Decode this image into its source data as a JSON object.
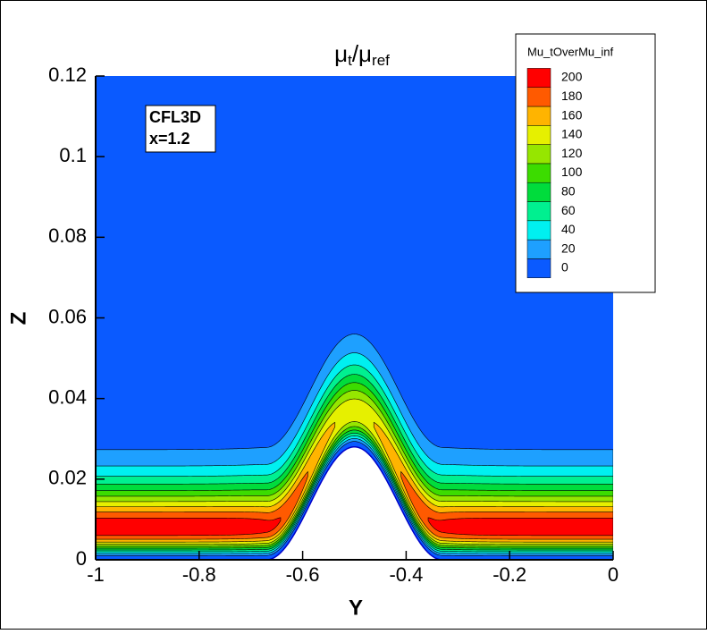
{
  "chart_data": {
    "type": "contour",
    "title": {
      "base1": "μ",
      "sub1": "t",
      "base2": "/μ",
      "sub2": "ref"
    },
    "x_label": "Y",
    "y_label": "Z",
    "annotation": [
      "CFL3D",
      "x=1.2"
    ],
    "legend_title": "Mu_tOverMu_inf",
    "levels": [
      0,
      20,
      40,
      60,
      80,
      100,
      120,
      140,
      160,
      180,
      200
    ],
    "colors": [
      "#0a5aff",
      "#1ea0ff",
      "#00f0f0",
      "#00f090",
      "#00dc3c",
      "#3cdc00",
      "#96e600",
      "#e6f000",
      "#ffb400",
      "#ff5a00",
      "#ff0000"
    ],
    "xlim": [
      -1,
      0
    ],
    "xticks": [
      -1,
      -0.8,
      -0.6,
      -0.4,
      -0.2,
      0
    ],
    "ylim": [
      0,
      0.12
    ],
    "yticks": [
      0,
      0.02,
      0.04,
      0.06,
      0.08,
      0.1,
      0.12
    ]
  }
}
